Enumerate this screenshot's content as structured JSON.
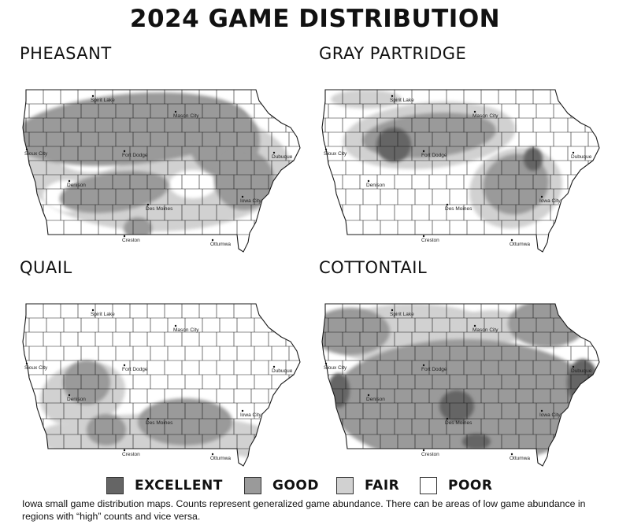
{
  "title": "2024 GAME DISTRIBUTION",
  "colors": {
    "excellent": "#656565",
    "good": "#9a9a9a",
    "fair": "#d1d1d1",
    "poor": "#ffffff",
    "county_lines": "#1a1a1a"
  },
  "maps": [
    {
      "id": "pheasant",
      "title": "PHEASANT"
    },
    {
      "id": "gray-partridge",
      "title": "GRAY PARTRIDGE"
    },
    {
      "id": "quail",
      "title": "QUAIL"
    },
    {
      "id": "cottontail",
      "title": "COTTONTAIL"
    }
  ],
  "cities": [
    "Spirit Lake",
    "Mason City",
    "Sioux City",
    "Fort Dodge",
    "Dubuque",
    "Denison",
    "Des Moines",
    "Iowa City",
    "Creston",
    "Ottumwa"
  ],
  "legend": [
    {
      "label": "EXCELLENT",
      "level": "excellent"
    },
    {
      "label": "GOOD",
      "level": "good"
    },
    {
      "label": "FAIR",
      "level": "fair"
    },
    {
      "label": "POOR",
      "level": "poor"
    }
  ],
  "caption": "Iowa small game distribution maps. Counts represent generalized game abundance.  There can be areas of low game abundance in regions with “high” counts and vice versa."
}
